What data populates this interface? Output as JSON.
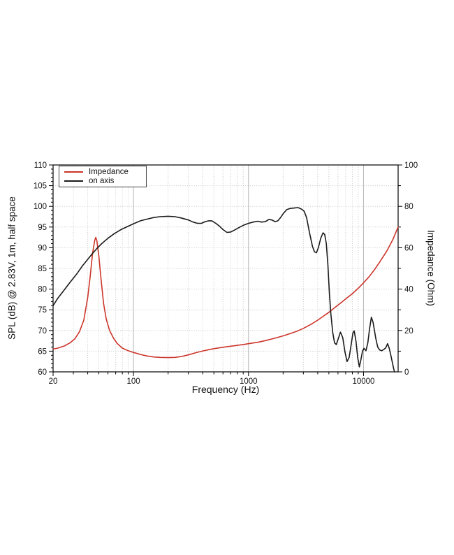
{
  "chart_data": {
    "type": "line",
    "title": "",
    "x_axis": {
      "label": "Frequency (Hz)",
      "scale": "log",
      "min": 20,
      "max": 20000,
      "major_ticks": [
        {
          "v": 20,
          "label": "20"
        },
        {
          "v": 100,
          "label": "100"
        },
        {
          "v": 1000,
          "label": "1000"
        },
        {
          "v": 10000,
          "label": "10000"
        }
      ],
      "minor_ticks": [
        30,
        40,
        50,
        60,
        70,
        80,
        90,
        200,
        300,
        400,
        500,
        600,
        700,
        800,
        900,
        2000,
        3000,
        4000,
        5000,
        6000,
        7000,
        8000,
        9000
      ]
    },
    "y_left": {
      "label": "SPL (dB) @ 2.83V, 1m, half space",
      "min": 60,
      "max": 110,
      "major_ticks": [
        {
          "v": 60,
          "label": "60"
        },
        {
          "v": 65,
          "label": "65"
        },
        {
          "v": 70,
          "label": "70"
        },
        {
          "v": 75,
          "label": "75"
        },
        {
          "v": 80,
          "label": "80"
        },
        {
          "v": 85,
          "label": "85"
        },
        {
          "v": 90,
          "label": "90"
        },
        {
          "v": 95,
          "label": "95"
        },
        {
          "v": 100,
          "label": "100"
        },
        {
          "v": 105,
          "label": "105"
        },
        {
          "v": 110,
          "label": "110"
        }
      ],
      "minor_step": 1,
      "grid_step": 5
    },
    "y_right": {
      "label": "Impedance (Ohm)",
      "min": 0,
      "max": 100,
      "major_ticks": [
        {
          "v": 0,
          "label": "0"
        },
        {
          "v": 20,
          "label": "20"
        },
        {
          "v": 40,
          "label": "40"
        },
        {
          "v": 60,
          "label": "60"
        },
        {
          "v": 80,
          "label": "80"
        },
        {
          "v": 100,
          "label": "100"
        }
      ],
      "minor_step": 10
    },
    "grid": {
      "show": true,
      "minor_color": "#c9c9c9",
      "decade_color": "#b5b5b5"
    },
    "legend": {
      "position": "top-left",
      "entries": [
        {
          "label": "Impedance",
          "color": "#cc352a"
        },
        {
          "label": "on axis",
          "color": "#1a1a1a"
        }
      ]
    },
    "series": [
      {
        "name": "Impedance",
        "axis": "right",
        "unit": "Ohm",
        "color": "#cc352a",
        "points": [
          [
            20,
            11
          ],
          [
            22,
            11.5
          ],
          [
            25,
            12.5
          ],
          [
            28,
            14
          ],
          [
            31,
            16
          ],
          [
            34,
            19.5
          ],
          [
            37,
            25
          ],
          [
            40,
            36
          ],
          [
            42,
            46
          ],
          [
            44,
            57
          ],
          [
            46,
            63.5
          ],
          [
            47,
            65
          ],
          [
            48,
            63.5
          ],
          [
            50,
            56
          ],
          [
            52,
            46
          ],
          [
            55,
            33
          ],
          [
            58,
            25.5
          ],
          [
            62,
            20
          ],
          [
            67,
            16.3
          ],
          [
            72,
            13.8
          ],
          [
            80,
            11.5
          ],
          [
            90,
            10.2
          ],
          [
            100,
            9.4
          ],
          [
            115,
            8.4
          ],
          [
            130,
            7.7
          ],
          [
            150,
            7.2
          ],
          [
            170,
            7.0
          ],
          [
            200,
            6.9
          ],
          [
            230,
            7.0
          ],
          [
            260,
            7.4
          ],
          [
            300,
            8.2
          ],
          [
            350,
            9.3
          ],
          [
            400,
            10.1
          ],
          [
            450,
            10.7
          ],
          [
            500,
            11.2
          ],
          [
            600,
            11.9
          ],
          [
            700,
            12.4
          ],
          [
            800,
            12.8
          ],
          [
            900,
            13.2
          ],
          [
            1000,
            13.6
          ],
          [
            1200,
            14.3
          ],
          [
            1400,
            15.1
          ],
          [
            1600,
            15.9
          ],
          [
            1800,
            16.7
          ],
          [
            2000,
            17.4
          ],
          [
            2300,
            18.5
          ],
          [
            2600,
            19.5
          ],
          [
            3000,
            21
          ],
          [
            3500,
            23
          ],
          [
            4000,
            25
          ],
          [
            4500,
            27
          ],
          [
            5000,
            28.8
          ],
          [
            5600,
            31
          ],
          [
            6300,
            33.2
          ],
          [
            7100,
            35.5
          ],
          [
            8000,
            37.8
          ],
          [
            9000,
            40.4
          ],
          [
            10000,
            43
          ],
          [
            11200,
            46
          ],
          [
            12500,
            49.5
          ],
          [
            14000,
            53.5
          ],
          [
            16000,
            58.5
          ],
          [
            18000,
            64
          ],
          [
            20000,
            70
          ]
        ]
      },
      {
        "name": "on axis",
        "axis": "left",
        "unit": "dB",
        "color": "#1a1a1a",
        "points": [
          [
            20,
            76
          ],
          [
            22,
            77.8
          ],
          [
            25,
            79.8
          ],
          [
            28,
            81.6
          ],
          [
            32,
            83.6
          ],
          [
            36,
            85.6
          ],
          [
            40,
            87.2
          ],
          [
            44,
            88.6
          ],
          [
            48,
            89.8
          ],
          [
            53,
            91
          ],
          [
            60,
            92.3
          ],
          [
            68,
            93.4
          ],
          [
            78,
            94.4
          ],
          [
            90,
            95.2
          ],
          [
            100,
            95.8
          ],
          [
            115,
            96.5
          ],
          [
            130,
            96.9
          ],
          [
            150,
            97.3
          ],
          [
            170,
            97.5
          ],
          [
            200,
            97.6
          ],
          [
            230,
            97.5
          ],
          [
            260,
            97.2
          ],
          [
            300,
            96.7
          ],
          [
            330,
            96.2
          ],
          [
            360,
            95.9
          ],
          [
            390,
            95.9
          ],
          [
            420,
            96.3
          ],
          [
            450,
            96.5
          ],
          [
            480,
            96.5
          ],
          [
            520,
            95.9
          ],
          [
            560,
            95.2
          ],
          [
            600,
            94.4
          ],
          [
            650,
            93.7
          ],
          [
            700,
            93.8
          ],
          [
            760,
            94.3
          ],
          [
            830,
            94.9
          ],
          [
            900,
            95.4
          ],
          [
            1000,
            95.9
          ],
          [
            1100,
            96.2
          ],
          [
            1200,
            96.4
          ],
          [
            1300,
            96.2
          ],
          [
            1400,
            96.3
          ],
          [
            1500,
            96.8
          ],
          [
            1600,
            96.7
          ],
          [
            1700,
            96.3
          ],
          [
            1800,
            96.5
          ],
          [
            1900,
            97.3
          ],
          [
            2000,
            98.2
          ],
          [
            2150,
            99.2
          ],
          [
            2300,
            99.5
          ],
          [
            2500,
            99.6
          ],
          [
            2700,
            99.7
          ],
          [
            2900,
            99.3
          ],
          [
            3050,
            98.8
          ],
          [
            3200,
            97.3
          ],
          [
            3400,
            93.5
          ],
          [
            3600,
            90.3
          ],
          [
            3750,
            89.0
          ],
          [
            3900,
            88.8
          ],
          [
            4050,
            90.0
          ],
          [
            4250,
            92.3
          ],
          [
            4450,
            93.6
          ],
          [
            4600,
            93.2
          ],
          [
            4750,
            91.0
          ],
          [
            4900,
            86.0
          ],
          [
            5050,
            79.0
          ],
          [
            5200,
            74.0
          ],
          [
            5400,
            69.5
          ],
          [
            5600,
            67.0
          ],
          [
            5800,
            66.6
          ],
          [
            6000,
            67.8
          ],
          [
            6300,
            69.6
          ],
          [
            6600,
            68.3
          ],
          [
            6900,
            64.8
          ],
          [
            7200,
            62.5
          ],
          [
            7500,
            63.5
          ],
          [
            7800,
            66.5
          ],
          [
            8100,
            69.5
          ],
          [
            8300,
            69.9
          ],
          [
            8600,
            67.5
          ],
          [
            8900,
            63.5
          ],
          [
            9200,
            61.2
          ],
          [
            9500,
            63.0
          ],
          [
            9800,
            65.0
          ],
          [
            10100,
            65.7
          ],
          [
            10500,
            65.1
          ],
          [
            10900,
            67.0
          ],
          [
            11300,
            70.5
          ],
          [
            11700,
            73.2
          ],
          [
            12100,
            72.0
          ],
          [
            12400,
            70.3
          ],
          [
            12800,
            68.0
          ],
          [
            13300,
            66.0
          ],
          [
            13800,
            65.3
          ],
          [
            14400,
            65.1
          ],
          [
            15000,
            65.4
          ],
          [
            15600,
            65.8
          ],
          [
            16200,
            66.8
          ],
          [
            16700,
            65.8
          ],
          [
            17200,
            64.3
          ],
          [
            17800,
            62.3
          ],
          [
            18300,
            60.8
          ],
          [
            18600,
            60.0
          ]
        ]
      }
    ]
  }
}
